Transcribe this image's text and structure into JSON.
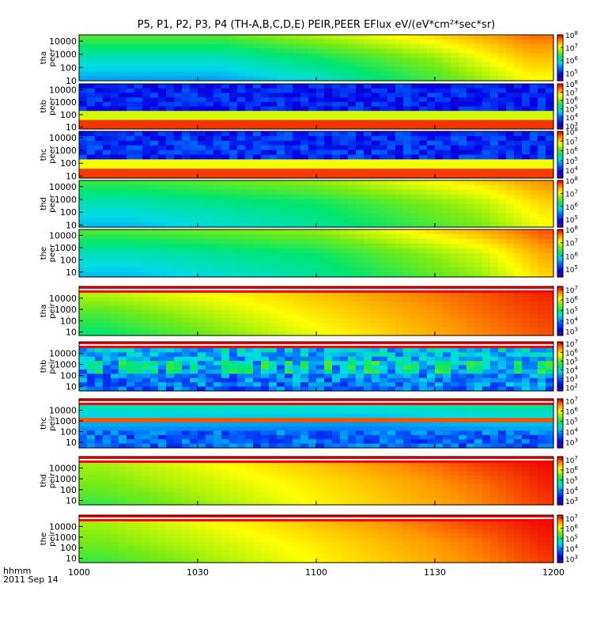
{
  "title": "P5, P1, P2, P3, P4 (TH-A,B,C,D,E) PEIR,PEER EFlux eV/(eV*cm²*sec*sr)",
  "footer": {
    "line1": "hhmm",
    "line2": "2011 Sep 14"
  },
  "chart_data": {
    "type": "heatmap",
    "title": "P5, P1, P2, P3, P4 (TH-A,B,C,D,E) PEIR,PEER EFlux eV/(eV*cm²*sec*sr)",
    "x_axis": {
      "ticks": [
        "1000",
        "1030",
        "1100",
        "1130",
        "1200"
      ],
      "range": [
        "10:00",
        "12:00"
      ],
      "date": "2011 Sep 14",
      "label": "hhmm"
    },
    "colormap": "rainbow (purple-blue-cyan-green-yellow-red)",
    "y_scale": "log",
    "panels": [
      {
        "ylabel": [
          "tha",
          "peer"
        ],
        "y_ticks": [
          "10000",
          "1000",
          "100",
          "10"
        ],
        "y_range": [
          10,
          30000
        ],
        "color_ticks": [
          "10^5",
          "10^6",
          "10^7",
          "10^8"
        ],
        "color_range_exp": [
          4.4,
          8.0
        ],
        "gap": false,
        "style": "smooth",
        "anchors": [
          [
            0.3,
            5.6,
            6.0,
            6.6
          ],
          [
            0.5,
            5.9,
            6.3,
            6.9
          ],
          [
            0.75,
            6.5,
            6.8,
            7.3
          ],
          [
            0.95,
            7.1,
            7.4,
            7.7
          ]
        ]
      },
      {
        "ylabel": [
          "thb",
          "peer"
        ],
        "y_ticks": [
          "10000",
          "1000",
          "100",
          "10"
        ],
        "y_range": [
          7,
          30000
        ],
        "color_ticks": [
          "10^3",
          "10^4",
          "10^5",
          "10^6",
          "10^7",
          "10^8"
        ],
        "color_range_exp": [
          2.6,
          8.0
        ],
        "gap": false,
        "style": "band_low",
        "anchors": [
          [
            0.1,
            3.3,
            5.0,
            6.2
          ],
          [
            0.6,
            3.1,
            4.9,
            6.1
          ],
          [
            0.9,
            3.4,
            5.2,
            6.3
          ]
        ]
      },
      {
        "ylabel": [
          "thc",
          "peer"
        ],
        "y_ticks": [
          "10000",
          "1000",
          "100",
          "10"
        ],
        "y_range": [
          7,
          30000
        ],
        "color_ticks": [
          "10^4",
          "10^5",
          "10^6",
          "10^7",
          "10^8"
        ],
        "color_range_exp": [
          3.2,
          8.0
        ],
        "gap": false,
        "style": "band_low",
        "anchors": [
          [
            0.1,
            3.6,
            4.6,
            5.6
          ],
          [
            0.6,
            3.4,
            4.4,
            5.4
          ],
          [
            0.9,
            3.7,
            4.7,
            5.8
          ]
        ]
      },
      {
        "ylabel": [
          "thd",
          "peer"
        ],
        "y_ticks": [
          "10000",
          "1000",
          "100",
          "10"
        ],
        "y_range": [
          7,
          30000
        ],
        "color_ticks": [
          "10^5",
          "10^6",
          "10^7",
          "10^8"
        ],
        "color_range_exp": [
          4.4,
          8.0
        ],
        "gap": false,
        "style": "smooth",
        "anchors": [
          [
            0.1,
            5.7,
            6.0,
            6.5
          ],
          [
            0.5,
            6.1,
            6.3,
            6.8
          ],
          [
            0.85,
            6.7,
            6.9,
            7.3
          ],
          [
            0.98,
            7.1,
            7.3,
            7.6
          ]
        ]
      },
      {
        "ylabel": [
          "the",
          "peer"
        ],
        "y_ticks": [
          "10000",
          "1000",
          "100",
          "10"
        ],
        "y_range": [
          4,
          30000
        ],
        "color_ticks": [
          "10^5",
          "10^6",
          "10^7",
          "10^8"
        ],
        "color_range_exp": [
          4.4,
          8.0
        ],
        "gap": false,
        "style": "smooth",
        "anchors": [
          [
            0.1,
            5.7,
            6.0,
            6.6
          ],
          [
            0.5,
            6.1,
            6.3,
            6.8
          ],
          [
            0.85,
            6.8,
            7.0,
            7.5
          ],
          [
            0.98,
            7.3,
            7.5,
            7.8
          ]
        ]
      },
      {
        "ylabel": [
          "tha",
          "peir"
        ],
        "y_ticks": [
          "10000",
          "1000",
          "100",
          "10"
        ],
        "y_range": [
          5,
          30000
        ],
        "color_ticks": [
          "10^3",
          "10^4",
          "10^5",
          "10^6",
          "10^7"
        ],
        "color_range_exp": [
          2.6,
          7.3
        ],
        "gap": true,
        "style": "smooth",
        "anchors": [
          [
            0.05,
            5.0,
            5.4,
            5.9
          ],
          [
            0.5,
            6.1,
            6.3,
            6.5
          ],
          [
            0.85,
            6.8,
            6.9,
            7.0
          ],
          [
            0.98,
            7.0,
            7.1,
            7.2
          ]
        ]
      },
      {
        "ylabel": [
          "thb",
          "peir"
        ],
        "y_ticks": [
          "10000",
          "1000",
          "100",
          "10"
        ],
        "y_range": [
          4,
          30000
        ],
        "color_ticks": [
          "10^2",
          "10^3",
          "10^4",
          "10^5",
          "10^6",
          "10^7"
        ],
        "color_range_exp": [
          1.6,
          7.2
        ],
        "gap": true,
        "style": "noise",
        "anchors": [
          [
            0.1,
            3.0,
            3.3,
            3.6
          ],
          [
            0.6,
            3.1,
            3.4,
            3.7
          ],
          [
            0.9,
            3.2,
            3.4,
            3.8
          ]
        ]
      },
      {
        "ylabel": [
          "thc",
          "peir"
        ],
        "y_ticks": [
          "10000",
          "1000",
          "100",
          "10"
        ],
        "y_range": [
          3,
          30000
        ],
        "color_ticks": [
          "10^3",
          "10^4",
          "10^5",
          "10^6",
          "10^7"
        ],
        "color_range_exp": [
          2.4,
          7.2
        ],
        "gap": true,
        "style": "band_mid",
        "anchors": [
          [
            0.1,
            3.3,
            4.0,
            4.6
          ],
          [
            0.6,
            3.2,
            3.9,
            4.5
          ],
          [
            0.9,
            3.4,
            4.1,
            4.7
          ]
        ]
      },
      {
        "ylabel": [
          "thd",
          "peir"
        ],
        "y_ticks": [
          "10000",
          "1000",
          "100",
          "10"
        ],
        "y_range": [
          4,
          30000
        ],
        "color_ticks": [
          "10^3",
          "10^4",
          "10^5",
          "10^6",
          "10^7"
        ],
        "color_range_exp": [
          2.6,
          7.3
        ],
        "gap": true,
        "style": "smooth",
        "anchors": [
          [
            0.05,
            5.3,
            5.6,
            5.8
          ],
          [
            0.5,
            6.2,
            6.3,
            6.5
          ],
          [
            0.85,
            6.8,
            6.9,
            7.1
          ],
          [
            0.98,
            7.1,
            7.2,
            7.3
          ]
        ]
      },
      {
        "ylabel": [
          "the",
          "peir"
        ],
        "y_ticks": [
          "10000",
          "1000",
          "100",
          "10"
        ],
        "y_range": [
          4,
          30000
        ],
        "color_ticks": [
          "10^3",
          "10^4",
          "10^5",
          "10^6",
          "10^7"
        ],
        "color_range_exp": [
          2.6,
          7.3
        ],
        "gap": true,
        "style": "smooth",
        "anchors": [
          [
            0.05,
            5.3,
            5.6,
            5.8
          ],
          [
            0.5,
            6.2,
            6.3,
            6.5
          ],
          [
            0.85,
            6.8,
            6.9,
            7.1
          ],
          [
            0.98,
            7.1,
            7.2,
            7.3
          ]
        ]
      }
    ]
  }
}
